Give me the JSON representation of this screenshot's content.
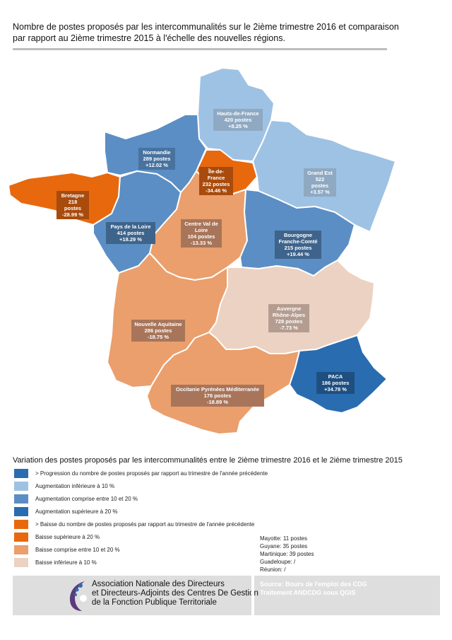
{
  "title": "Nombre de postes proposés par les intercommunalités sur le 2ième trimestre 2016 et comparaison par rapport au 2ième trimestre 2015 à l'échelle des nouvelles régions.",
  "regions": [
    {
      "id": "hauts-de-france",
      "name": "Hauts-de-France",
      "postes": "420 postes",
      "variation": "+8.25 %",
      "color": "#9ec2e4"
    },
    {
      "id": "normandie",
      "name": "Normandie",
      "postes": "289 postes",
      "variation": "+12.02 %",
      "color": "#5b8ec4"
    },
    {
      "id": "ile-de-france",
      "name": "Île-de-France",
      "postes": "232 postes",
      "variation": "-34.46 %",
      "color": "#e8680e"
    },
    {
      "id": "grand-est",
      "name": "Grand Est",
      "postes": "522 postes",
      "variation": "+3.57 %",
      "color": "#9ec2e4"
    },
    {
      "id": "bretagne",
      "name": "Bretagne",
      "postes": "218 postes",
      "variation": "-28.99 %",
      "color": "#e8680e"
    },
    {
      "id": "pays-de-la-loire",
      "name": "Pays de la Loire",
      "postes": "414 postes",
      "variation": "+18.29 %",
      "color": "#5b8ec4"
    },
    {
      "id": "centre-val-de-loire",
      "name": "Centre Val de Loire",
      "postes": "104 postes",
      "variation": "-13.33 %",
      "color": "#ea9f6c"
    },
    {
      "id": "bourgogne-franche-comte",
      "name": "Bourgogne Franche-Comté",
      "postes": "215 postes",
      "variation": "+19.44 %",
      "color": "#5b8ec4"
    },
    {
      "id": "nouvelle-aquitaine",
      "name": "Nouvelle Aquitaine",
      "postes": "286 postes",
      "variation": "-18.75 %",
      "color": "#ea9f6c"
    },
    {
      "id": "auvergne-rhone-alpes",
      "name": "Auvergne Rhône-Alpes",
      "postes": "728 postes",
      "variation": "-7.73 %",
      "color": "#ecd2c2"
    },
    {
      "id": "paca",
      "name": "PACA",
      "postes": "186 postes",
      "variation": "+34.78 %",
      "color": "#2a6cb0"
    },
    {
      "id": "occitanie",
      "name": "Occitanie Pyrénées Méditerranée",
      "postes": "176 postes",
      "variation": "-18.89 %",
      "color": "#ea9f6c"
    }
  ],
  "legend": {
    "title": "Variation des postes proposés par les intercommunalités entre le 2ième trimestre 2016 et le 2ième trimestre 2015",
    "items": [
      {
        "label": "> Progression du nombre de postes proposés par rapport au trimestre de l'année précédente",
        "color": "#2a6cb0"
      },
      {
        "label": "Augmentation inférieure à 10 %",
        "color": "#9ec2e4"
      },
      {
        "label": "Augmentation comprise entre 10 et 20 %",
        "color": "#5b8ec4"
      },
      {
        "label": "Augmentation supérieure à 20 %",
        "color": "#2a6cb0"
      },
      {
        "label": "> Baisse du nombre de postes proposés par rapport au trimestre de l'année précédente",
        "color": "#e8680e"
      },
      {
        "label": "Baisse supérieure à 20 %",
        "color": "#e8680e"
      },
      {
        "label": "Baisse comprise entre 10 et 20 %",
        "color": "#ea9f6c"
      },
      {
        "label": "Baisse inférieure à 10 %",
        "color": "#ecd2c2"
      }
    ]
  },
  "overseas": [
    "Mayotte: 11 postes",
    "Guyane: 35 postes",
    "Martinique: 39 postes",
    "Guadeloupe: /",
    "Réunion: /"
  ],
  "footer": {
    "assoc_line1": "Association Nationale des Directeurs",
    "assoc_line2": "et Directeurs-Adjoints des Centres De Gestion",
    "assoc_line3": "de la Fonction Publique Territoriale",
    "source_line1": "Source: Bours de l'emploi des CDG",
    "source_line2": "Traitement ANDCDG sous QGIS"
  }
}
